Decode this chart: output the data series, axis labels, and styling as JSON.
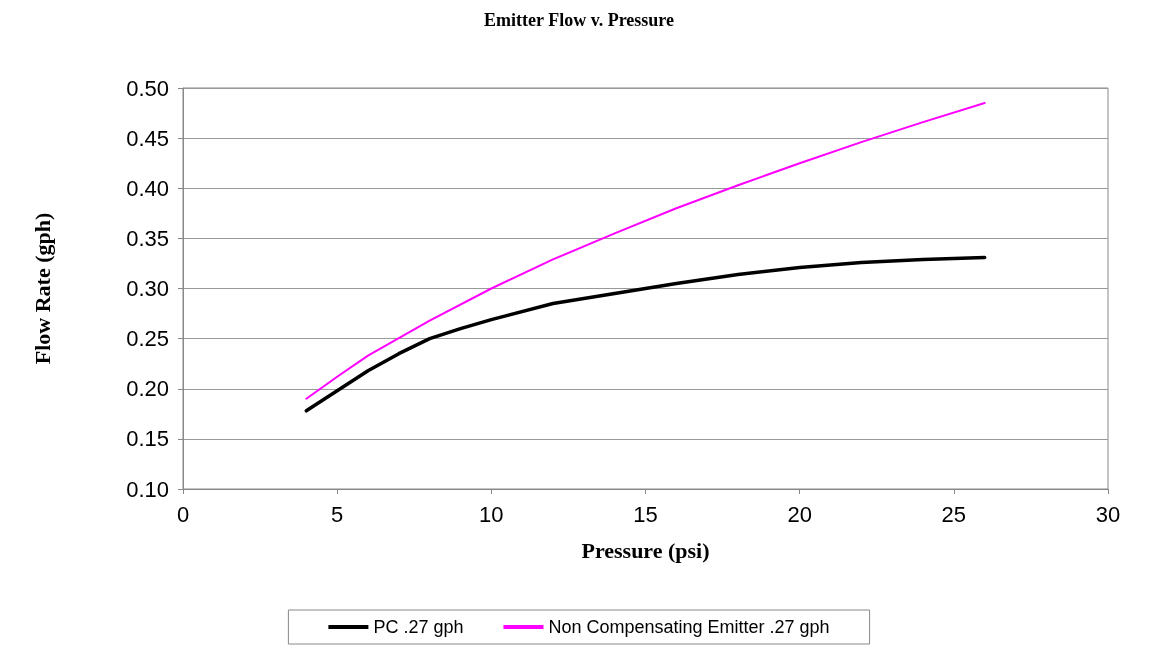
{
  "chart_data": {
    "type": "line",
    "title": "Emitter Flow v. Pressure",
    "xlabel": "Pressure (psi)",
    "ylabel": "Flow Rate (gph)",
    "xlim": [
      0,
      30
    ],
    "xticks": [
      0,
      5,
      10,
      15,
      20,
      25,
      30
    ],
    "ylim": [
      0.1,
      0.5
    ],
    "yticks": [
      {
        "value": 0.1,
        "label": "0.10"
      },
      0.15,
      {
        "value": 0.2,
        "label": "0.20"
      },
      0.25,
      {
        "value": 0.3,
        "label": "0.30"
      },
      0.35,
      {
        "value": 0.4,
        "label": "0.40"
      },
      0.45,
      {
        "value": 0.5,
        "label": "0.50"
      }
    ],
    "grid": "y",
    "legend": "bottom",
    "marker": "none",
    "line_style": "solid",
    "series": [
      {
        "name": "PC .27 gph",
        "color": "#000000",
        "x": [
          4,
          5,
          6,
          7,
          8,
          9,
          10,
          12,
          14,
          16,
          18,
          20,
          22,
          24,
          26
        ],
        "values": [
          0.178,
          0.198,
          0.218,
          0.235,
          0.25,
          0.26,
          0.269,
          0.285,
          0.295,
          0.305,
          0.314,
          0.321,
          0.326,
          0.329,
          0.331
        ]
      },
      {
        "name": "Non Compensating Emitter .27 gph",
        "color": "#ff00ff",
        "x": [
          4,
          5,
          6,
          8,
          10,
          12,
          14,
          16,
          18,
          20,
          22,
          24,
          26
        ],
        "values": [
          0.19,
          0.212,
          0.233,
          0.268,
          0.3,
          0.329,
          0.355,
          0.38,
          0.403,
          0.425,
          0.446,
          0.466,
          0.485
        ]
      }
    ]
  }
}
